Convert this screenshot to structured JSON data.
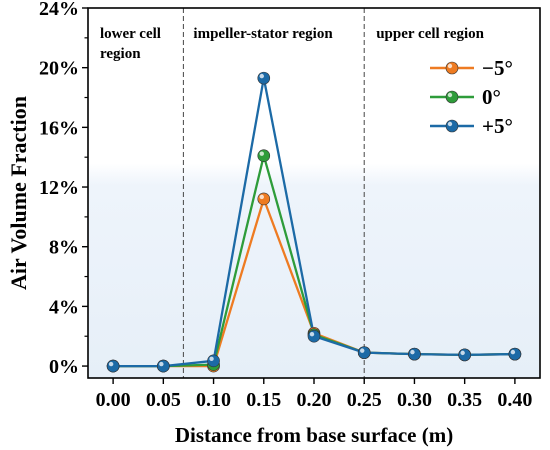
{
  "chart_data": {
    "type": "line",
    "xlabel": "Distance from base surface (m)",
    "ylabel": "Air Volume Fraction",
    "x": [
      0.0,
      0.05,
      0.1,
      0.15,
      0.2,
      0.25,
      0.3,
      0.35,
      0.4
    ],
    "x_tick_labels": [
      "0.00",
      "0.05",
      "0.10",
      "0.15",
      "0.20",
      "0.25",
      "0.30",
      "0.35",
      "0.40"
    ],
    "xlim": [
      -0.025,
      0.425
    ],
    "ylim": [
      -0.8,
      24
    ],
    "y_ticks": [
      0,
      4,
      8,
      12,
      16,
      20,
      24
    ],
    "y_tick_labels": [
      "0%",
      "4%",
      "8%",
      "12%",
      "16%",
      "20%",
      "24%"
    ],
    "grid": false,
    "legend_position": "top-right",
    "region_dividers_x": [
      0.07,
      0.25
    ],
    "regions": [
      {
        "label_lines": [
          "lower cell",
          "region"
        ]
      },
      {
        "label_lines": [
          "impeller-stator region"
        ]
      },
      {
        "label_lines": [
          "upper cell region"
        ]
      }
    ],
    "series": [
      {
        "name": "−5°",
        "color": "#ee7b22",
        "values": [
          0.0,
          0.0,
          0.0,
          11.2,
          2.2,
          0.9,
          0.8,
          0.75,
          0.8
        ]
      },
      {
        "name": "0°",
        "color": "#2e9c3a",
        "values": [
          0.0,
          0.0,
          0.1,
          14.1,
          2.1,
          0.9,
          0.8,
          0.75,
          0.8
        ]
      },
      {
        "name": "+5°",
        "color": "#1c6aa6",
        "values": [
          0.0,
          0.0,
          0.35,
          19.3,
          2.0,
          0.9,
          0.8,
          0.75,
          0.8
        ]
      }
    ]
  }
}
